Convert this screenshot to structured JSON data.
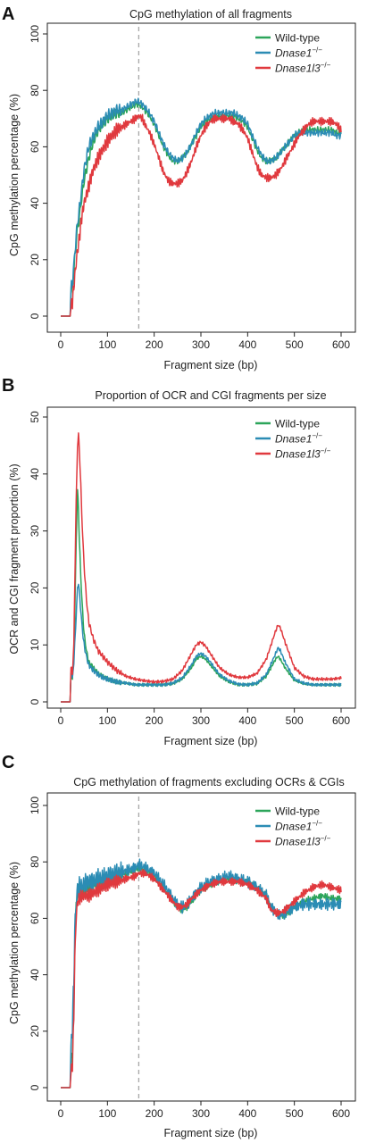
{
  "chart_data": [
    {
      "type": "line",
      "panel": "A",
      "title": "CpG methylation of all fragments",
      "xlabel": "Fragment size (bp)",
      "ylabel": "CpG methylation percentage (%)",
      "xlim": [
        0,
        600
      ],
      "ylim": [
        0,
        100
      ],
      "xticks": [
        "0",
        "100",
        "200",
        "300",
        "400",
        "500",
        "600"
      ],
      "yticks": [
        "0",
        "20",
        "40",
        "60",
        "80",
        "100"
      ],
      "grid": false,
      "legend_position": "top-right",
      "vline_x": 167,
      "colors": {
        "Wild-type": "#2ca55a",
        "Dnase1": "#2b8cb4",
        "Dnase1l3": "#e0393e",
        "vline": "#a6a6a6"
      },
      "series": [
        {
          "name": "Wild-type",
          "name_sup": "",
          "color": "#2ca55a",
          "noise": 1.2,
          "freq": 0.35,
          "x": [
            0,
            20,
            22,
            25,
            30,
            35,
            40,
            45,
            50,
            60,
            70,
            80,
            90,
            100,
            110,
            120,
            130,
            140,
            150,
            160,
            167,
            175,
            180,
            190,
            200,
            210,
            220,
            230,
            240,
            250,
            260,
            270,
            280,
            290,
            300,
            310,
            320,
            330,
            340,
            350,
            360,
            370,
            380,
            390,
            400,
            410,
            420,
            430,
            440,
            450,
            460,
            470,
            480,
            490,
            500,
            510,
            520,
            530,
            540,
            550,
            560,
            570,
            580,
            590,
            600
          ],
          "y": [
            0,
            0,
            8,
            10,
            20,
            30,
            35,
            42,
            48,
            56,
            62,
            66,
            68,
            70,
            71,
            72,
            72,
            73,
            74,
            75,
            75,
            74,
            73,
            71,
            68,
            64,
            60,
            57,
            55,
            55,
            56,
            58,
            61,
            64,
            67,
            69,
            70,
            71,
            71,
            71,
            71,
            71,
            70,
            69,
            67,
            63,
            59,
            56,
            55,
            55,
            56,
            58,
            60,
            62,
            64,
            65,
            66,
            66,
            66,
            66,
            66,
            66,
            66,
            65,
            65
          ]
        },
        {
          "name": "Dnase1",
          "name_sup": "−/−",
          "color": "#2b8cb4",
          "noise": 1.3,
          "freq": 0.35,
          "x": [
            0,
            20,
            22,
            25,
            30,
            35,
            40,
            45,
            50,
            60,
            70,
            80,
            90,
            100,
            110,
            120,
            130,
            140,
            150,
            160,
            167,
            175,
            180,
            190,
            200,
            210,
            220,
            230,
            240,
            250,
            260,
            270,
            280,
            290,
            300,
            310,
            320,
            330,
            340,
            350,
            360,
            370,
            380,
            390,
            400,
            410,
            420,
            430,
            440,
            450,
            460,
            470,
            480,
            490,
            500,
            510,
            520,
            530,
            540,
            550,
            560,
            570,
            580,
            590,
            600
          ],
          "y": [
            0,
            0,
            10,
            12,
            22,
            32,
            38,
            45,
            52,
            60,
            64,
            67,
            69,
            71,
            72,
            73,
            73,
            74,
            75,
            76,
            76,
            75,
            74,
            72,
            69,
            65,
            61,
            58,
            56,
            55,
            56,
            58,
            61,
            65,
            68,
            70,
            71,
            72,
            72,
            72,
            72,
            72,
            71,
            70,
            68,
            64,
            60,
            57,
            55,
            55,
            56,
            58,
            60,
            62,
            64,
            65,
            65,
            65,
            65,
            65,
            65,
            65,
            65,
            64,
            64
          ]
        },
        {
          "name": "Dnase1l3",
          "name_sup": "−/−",
          "color": "#e0393e",
          "noise": 1.5,
          "freq": 0.5,
          "x": [
            0,
            20,
            22,
            25,
            30,
            35,
            40,
            45,
            50,
            60,
            70,
            80,
            90,
            100,
            110,
            120,
            130,
            140,
            150,
            160,
            167,
            175,
            180,
            190,
            200,
            210,
            220,
            230,
            240,
            250,
            260,
            270,
            280,
            290,
            300,
            310,
            320,
            330,
            340,
            350,
            360,
            370,
            380,
            390,
            400,
            410,
            420,
            430,
            440,
            450,
            460,
            470,
            480,
            490,
            500,
            510,
            520,
            530,
            540,
            550,
            560,
            570,
            580,
            590,
            600
          ],
          "y": [
            0,
            0,
            3,
            5,
            14,
            22,
            28,
            35,
            40,
            46,
            52,
            56,
            59,
            62,
            64,
            66,
            67,
            68,
            69,
            70,
            71,
            70,
            68,
            65,
            61,
            56,
            51,
            48,
            47,
            47,
            48,
            51,
            55,
            60,
            64,
            67,
            69,
            70,
            70,
            70,
            70,
            69,
            68,
            66,
            63,
            58,
            53,
            50,
            49,
            49,
            50,
            52,
            55,
            58,
            61,
            64,
            66,
            68,
            69,
            69,
            69,
            69,
            69,
            68,
            66
          ]
        }
      ]
    },
    {
      "type": "line",
      "panel": "B",
      "title": "Proportion of OCR and CGI fragments per size",
      "xlabel": "Fragment size (bp)",
      "ylabel": "OCR and CGI fragment proportion (%)",
      "xlim": [
        0,
        600
      ],
      "ylim": [
        0,
        50
      ],
      "xticks": [
        "0",
        "100",
        "200",
        "300",
        "400",
        "500",
        "600"
      ],
      "yticks": [
        "0",
        "10",
        "20",
        "30",
        "40",
        "50"
      ],
      "grid": false,
      "legend_position": "top-right",
      "vline_x": null,
      "colors": {
        "Wild-type": "#2ca55a",
        "Dnase1": "#2b8cb4",
        "Dnase1l3": "#e0393e"
      },
      "series": [
        {
          "name": "Wild-type",
          "name_sup": "",
          "color": "#2ca55a",
          "noise": 0.25,
          "freq": 0.4,
          "x": [
            0,
            20,
            22,
            25,
            28,
            30,
            33,
            36,
            38,
            40,
            43,
            46,
            50,
            55,
            60,
            70,
            80,
            90,
            100,
            120,
            140,
            160,
            180,
            200,
            220,
            240,
            260,
            280,
            290,
            300,
            310,
            320,
            340,
            360,
            380,
            400,
            420,
            440,
            460,
            465,
            470,
            480,
            500,
            520,
            540,
            560,
            580,
            600
          ],
          "y": [
            0,
            0,
            5,
            4,
            8,
            14,
            28,
            37,
            34,
            28,
            22,
            17,
            12,
            9,
            7,
            6,
            5,
            4.5,
            4,
            3.5,
            3.3,
            3,
            3,
            3,
            3,
            3.2,
            4,
            6,
            7.5,
            8,
            7.5,
            6.5,
            4.5,
            3.5,
            3,
            3,
            3.2,
            4.5,
            7.5,
            8,
            7.5,
            6,
            3.8,
            3.2,
            3,
            3,
            3,
            3
          ]
        },
        {
          "name": "Dnase1",
          "name_sup": "−/−",
          "color": "#2b8cb4",
          "noise": 0.3,
          "freq": 0.4,
          "x": [
            0,
            20,
            22,
            25,
            28,
            30,
            33,
            36,
            38,
            40,
            43,
            46,
            50,
            55,
            60,
            70,
            80,
            90,
            100,
            120,
            140,
            160,
            180,
            200,
            220,
            240,
            260,
            280,
            290,
            300,
            310,
            320,
            340,
            360,
            380,
            400,
            420,
            440,
            460,
            465,
            470,
            480,
            500,
            520,
            540,
            560,
            580,
            600
          ],
          "y": [
            0,
            0,
            5,
            4,
            7,
            10,
            15,
            20,
            21,
            19,
            16,
            13,
            10,
            8,
            6.5,
            5.5,
            4.8,
            4.3,
            4,
            3.5,
            3.3,
            3,
            3,
            3,
            3,
            3.3,
            4.2,
            6.5,
            8,
            8.5,
            8,
            7,
            4.8,
            3.7,
            3.1,
            3,
            3.3,
            4.8,
            8.5,
            9.5,
            9,
            7,
            4,
            3.3,
            3,
            3,
            3,
            3
          ]
        },
        {
          "name": "Dnase1l3",
          "name_sup": "−/−",
          "color": "#e0393e",
          "noise": 0.3,
          "freq": 0.4,
          "x": [
            0,
            20,
            22,
            25,
            28,
            30,
            33,
            36,
            38,
            40,
            43,
            46,
            50,
            55,
            60,
            70,
            80,
            90,
            100,
            120,
            140,
            160,
            180,
            200,
            220,
            240,
            260,
            280,
            290,
            300,
            310,
            320,
            340,
            360,
            380,
            400,
            420,
            440,
            460,
            465,
            470,
            480,
            500,
            520,
            540,
            560,
            580,
            600
          ],
          "y": [
            0,
            0,
            6,
            5,
            10,
            20,
            35,
            45,
            47,
            44,
            38,
            31,
            24,
            18,
            14,
            11,
            9,
            8,
            7,
            5.5,
            4.5,
            4,
            3.7,
            3.5,
            3.6,
            4,
            5.5,
            8.5,
            10,
            10.5,
            9.8,
            8.5,
            6,
            4.8,
            4.3,
            4.3,
            5,
            7.5,
            12.5,
            13.5,
            13,
            10.5,
            6,
            4.5,
            4,
            4,
            4,
            4.2
          ]
        }
      ]
    },
    {
      "type": "line",
      "panel": "C",
      "title": "CpG methylation of fragments excluding OCRs & CGIs",
      "xlabel": "Fragment size (bp)",
      "ylabel": "CpG methylation percentage (%)",
      "xlim": [
        0,
        600
      ],
      "ylim": [
        0,
        100
      ],
      "xticks": [
        "0",
        "100",
        "200",
        "300",
        "400",
        "500",
        "600"
      ],
      "yticks": [
        "0",
        "20",
        "40",
        "60",
        "80",
        "100"
      ],
      "grid": false,
      "legend_position": "top-right",
      "vline_x": 167,
      "colors": {
        "Wild-type": "#2ca55a",
        "Dnase1": "#2b8cb4",
        "Dnase1l3": "#e0393e",
        "vline": "#a6a6a6"
      },
      "series": [
        {
          "name": "Wild-type",
          "name_sup": "",
          "color": "#2ca55a",
          "noise": 1.3,
          "freq": 0.45,
          "x": [
            0,
            20,
            22,
            25,
            28,
            30,
            33,
            36,
            40,
            45,
            50,
            60,
            70,
            80,
            90,
            100,
            120,
            140,
            160,
            167,
            180,
            200,
            220,
            240,
            250,
            260,
            270,
            280,
            300,
            320,
            340,
            360,
            380,
            400,
            420,
            440,
            450,
            460,
            470,
            480,
            500,
            520,
            540,
            560,
            580,
            600
          ],
          "y": [
            0,
            0,
            8,
            12,
            30,
            50,
            65,
            70,
            70,
            70,
            70,
            71,
            72,
            73,
            73,
            74,
            75,
            76,
            77,
            78,
            77,
            75,
            71,
            66,
            64,
            63,
            64,
            66,
            70,
            72,
            73,
            74,
            73,
            73,
            71,
            68,
            64,
            62,
            61,
            61,
            64,
            66,
            67,
            68,
            67,
            67
          ]
        },
        {
          "name": "Dnase1",
          "name_sup": "−/−",
          "color": "#2b8cb4",
          "noise": 2.2,
          "freq": 0.45,
          "x": [
            0,
            20,
            22,
            25,
            28,
            30,
            33,
            36,
            40,
            45,
            50,
            60,
            70,
            80,
            90,
            100,
            120,
            140,
            160,
            167,
            180,
            200,
            220,
            240,
            250,
            260,
            270,
            280,
            300,
            320,
            340,
            360,
            380,
            400,
            420,
            440,
            450,
            460,
            470,
            480,
            500,
            520,
            540,
            560,
            580,
            600
          ],
          "y": [
            0,
            0,
            15,
            22,
            38,
            55,
            66,
            70,
            71,
            71,
            72,
            73,
            73,
            74,
            74,
            75,
            76,
            77,
            78,
            79,
            78,
            76,
            72,
            67,
            65,
            64,
            65,
            67,
            71,
            73,
            74,
            75,
            74,
            73,
            71,
            68,
            64,
            62,
            61,
            62,
            64,
            65,
            65,
            65,
            65,
            65
          ]
        },
        {
          "name": "Dnase1l3",
          "name_sup": "−/−",
          "color": "#e0393e",
          "noise": 1.4,
          "freq": 0.5,
          "x": [
            0,
            20,
            22,
            25,
            28,
            30,
            33,
            36,
            40,
            45,
            50,
            60,
            70,
            80,
            90,
            100,
            120,
            140,
            160,
            167,
            180,
            200,
            220,
            240,
            250,
            260,
            270,
            280,
            300,
            320,
            340,
            360,
            380,
            400,
            420,
            440,
            450,
            460,
            470,
            480,
            500,
            520,
            540,
            560,
            580,
            600
          ],
          "y": [
            0,
            0,
            5,
            8,
            25,
            45,
            60,
            66,
            67,
            68,
            68,
            68,
            69,
            70,
            71,
            72,
            73,
            74,
            75,
            76,
            76,
            74,
            70,
            66,
            64,
            64,
            65,
            67,
            70,
            72,
            73,
            73,
            73,
            72,
            70,
            67,
            63,
            62,
            62,
            63,
            66,
            69,
            71,
            72,
            71,
            70
          ]
        }
      ]
    }
  ]
}
